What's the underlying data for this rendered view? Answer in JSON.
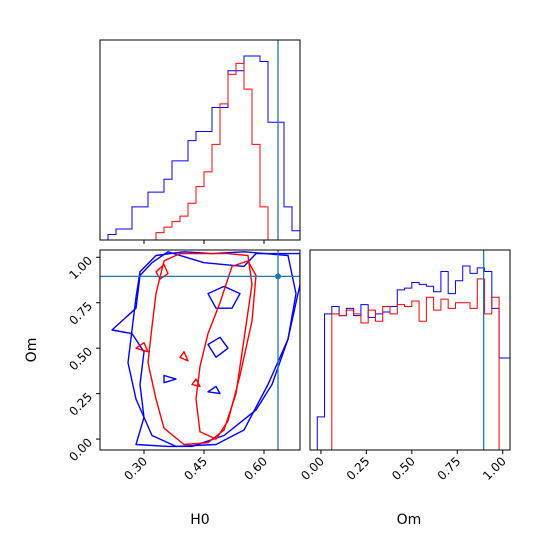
{
  "chart_data": {
    "type": "corner",
    "parameters": [
      "H0",
      "Om"
    ],
    "xlabel": "H0",
    "ylabel": "Om",
    "ranges": {
      "H0": [
        0.19,
        0.69
      ],
      "Om": [
        -0.06,
        1.04
      ]
    },
    "ticks": {
      "H0": {
        "values": [
          0.3,
          0.45,
          0.6
        ],
        "labels": [
          "0.30",
          "0.45",
          "0.60"
        ]
      },
      "Om": {
        "values": [
          0.0,
          0.25,
          0.5,
          0.75,
          1.0
        ],
        "labels": [
          "0.00",
          "0.25",
          "0.50",
          "0.75",
          "1.00"
        ]
      }
    },
    "truth": {
      "H0": 0.635,
      "Om": 0.895
    },
    "colors": {
      "blue": "#0000ff",
      "red": "#ff0000",
      "truth": "#1f77b4"
    },
    "histograms": {
      "H0": {
        "edges": [
          0.19,
          0.21,
          0.23,
          0.25,
          0.27,
          0.29,
          0.31,
          0.33,
          0.35,
          0.37,
          0.39,
          0.41,
          0.43,
          0.45,
          0.47,
          0.49,
          0.51,
          0.53,
          0.55,
          0.57,
          0.59,
          0.61,
          0.63,
          0.65,
          0.67,
          0.69
        ],
        "series": [
          {
            "color": "blue",
            "counts": [
              0.0,
              0.03,
              0.06,
              0.06,
              0.18,
              0.18,
              0.26,
              0.26,
              0.33,
              0.43,
              0.43,
              0.54,
              0.59,
              0.59,
              0.72,
              0.72,
              0.92,
              0.92,
              1.0,
              1.0,
              0.97,
              0.64,
              0.64,
              0.18,
              0.05
            ]
          },
          {
            "color": "red",
            "counts": [
              0.0,
              0.0,
              0.0,
              0.0,
              0.0,
              0.0,
              0.0,
              0.04,
              0.07,
              0.1,
              0.13,
              0.2,
              0.29,
              0.37,
              0.52,
              0.74,
              0.9,
              0.96,
              0.82,
              0.52,
              0.18,
              0.0,
              0.0,
              0.0,
              0.0
            ]
          }
        ]
      },
      "Om": {
        "edges": [
          -0.06,
          -0.02,
          0.02,
          0.06,
          0.1,
          0.14,
          0.18,
          0.22,
          0.26,
          0.3,
          0.34,
          0.38,
          0.42,
          0.46,
          0.5,
          0.54,
          0.58,
          0.62,
          0.66,
          0.7,
          0.74,
          0.78,
          0.82,
          0.86,
          0.9,
          0.94,
          0.98,
          1.02,
          1.04
        ],
        "series": [
          {
            "color": "blue",
            "counts": [
              0.0,
              0.18,
              0.74,
              0.78,
              0.73,
              0.77,
              0.73,
              0.79,
              0.72,
              0.74,
              0.75,
              0.78,
              0.87,
              0.88,
              0.91,
              0.9,
              0.89,
              0.86,
              0.97,
              0.85,
              0.92,
              1.0,
              0.96,
              0.99,
              0.97,
              0.77,
              0.5,
              0.5
            ]
          },
          {
            "color": "red",
            "counts": [
              0.0,
              0.0,
              0.0,
              0.74,
              0.73,
              0.76,
              0.74,
              0.69,
              0.76,
              0.7,
              0.78,
              0.74,
              0.79,
              0.78,
              0.81,
              0.7,
              0.83,
              0.76,
              0.82,
              0.77,
              0.8,
              0.8,
              0.77,
              0.93,
              0.74,
              0.83,
              0.0,
              0.0
            ]
          }
        ]
      }
    },
    "contours": [
      {
        "color": "blue",
        "points": [
          [
            0.28,
            0.78
          ],
          [
            0.27,
            0.6
          ],
          [
            0.26,
            0.42
          ],
          [
            0.28,
            0.22
          ],
          [
            0.32,
            0.02
          ],
          [
            0.38,
            -0.04
          ],
          [
            0.48,
            -0.03
          ],
          [
            0.55,
            0.05
          ],
          [
            0.61,
            0.3
          ],
          [
            0.66,
            0.55
          ],
          [
            0.68,
            0.8
          ],
          [
            0.66,
            1.01
          ],
          [
            0.55,
            1.03
          ],
          [
            0.47,
            1.02
          ],
          [
            0.4,
            1.03
          ],
          [
            0.33,
            1.01
          ],
          [
            0.29,
            0.92
          ],
          [
            0.28,
            0.78
          ]
        ]
      },
      {
        "color": "blue",
        "points": [
          [
            0.22,
            0.6
          ],
          [
            0.27,
            0.58
          ],
          [
            0.3,
            0.48
          ],
          [
            0.29,
            0.3
          ],
          [
            0.3,
            0.12
          ],
          [
            0.28,
            -0.03
          ],
          [
            0.36,
            -0.04
          ],
          [
            0.42,
            -0.04
          ],
          [
            0.5,
            0.02
          ],
          [
            0.58,
            0.16
          ],
          [
            0.62,
            0.3
          ],
          [
            0.66,
            0.55
          ],
          [
            0.69,
            0.85
          ],
          [
            0.69,
            1.02
          ],
          [
            0.65,
            1.02
          ],
          [
            0.58,
            1.02
          ],
          [
            0.55,
            0.95
          ],
          [
            0.45,
            0.97
          ],
          [
            0.36,
            1.03
          ],
          [
            0.32,
            0.97
          ],
          [
            0.29,
            0.9
          ],
          [
            0.28,
            0.72
          ],
          [
            0.22,
            0.6
          ]
        ]
      },
      {
        "color": "blue",
        "points": [
          [
            0.46,
            0.8
          ],
          [
            0.5,
            0.84
          ],
          [
            0.54,
            0.8
          ],
          [
            0.52,
            0.72
          ],
          [
            0.48,
            0.72
          ],
          [
            0.46,
            0.8
          ]
        ]
      },
      {
        "color": "blue",
        "points": [
          [
            0.46,
            0.52
          ],
          [
            0.49,
            0.56
          ],
          [
            0.51,
            0.5
          ],
          [
            0.48,
            0.45
          ],
          [
            0.46,
            0.52
          ]
        ]
      },
      {
        "color": "blue",
        "points": [
          [
            0.35,
            0.35
          ],
          [
            0.38,
            0.33
          ],
          [
            0.35,
            0.31
          ],
          [
            0.35,
            0.35
          ]
        ]
      },
      {
        "color": "blue",
        "points": [
          [
            0.46,
            0.26
          ],
          [
            0.48,
            0.29
          ],
          [
            0.49,
            0.25
          ],
          [
            0.46,
            0.26
          ]
        ]
      },
      {
        "color": "red",
        "points": [
          [
            0.33,
            0.8
          ],
          [
            0.32,
            0.62
          ],
          [
            0.31,
            0.42
          ],
          [
            0.33,
            0.22
          ],
          [
            0.35,
            0.06
          ],
          [
            0.4,
            -0.03
          ],
          [
            0.46,
            -0.02
          ],
          [
            0.5,
            0.05
          ],
          [
            0.53,
            0.25
          ],
          [
            0.55,
            0.55
          ],
          [
            0.57,
            0.85
          ],
          [
            0.56,
            1.01
          ],
          [
            0.51,
            1.02
          ],
          [
            0.45,
            1.02
          ],
          [
            0.39,
            1.02
          ],
          [
            0.35,
            0.98
          ],
          [
            0.33,
            0.8
          ]
        ]
      },
      {
        "color": "red",
        "points": [
          [
            0.44,
            0.4
          ],
          [
            0.43,
            0.22
          ],
          [
            0.44,
            0.04
          ],
          [
            0.48,
            0.0
          ],
          [
            0.51,
            0.1
          ],
          [
            0.54,
            0.35
          ],
          [
            0.57,
            0.65
          ],
          [
            0.58,
            0.9
          ],
          [
            0.56,
            0.98
          ],
          [
            0.52,
            0.95
          ],
          [
            0.49,
            0.75
          ],
          [
            0.46,
            0.58
          ],
          [
            0.44,
            0.4
          ]
        ]
      },
      {
        "color": "red",
        "points": [
          [
            0.33,
            0.92
          ],
          [
            0.35,
            0.96
          ],
          [
            0.36,
            0.91
          ],
          [
            0.34,
            0.88
          ],
          [
            0.33,
            0.92
          ]
        ]
      },
      {
        "color": "red",
        "points": [
          [
            0.28,
            0.5
          ],
          [
            0.3,
            0.53
          ],
          [
            0.31,
            0.48
          ],
          [
            0.28,
            0.5
          ]
        ]
      },
      {
        "color": "red",
        "points": [
          [
            0.39,
            0.45
          ],
          [
            0.4,
            0.48
          ],
          [
            0.41,
            0.43
          ],
          [
            0.39,
            0.45
          ]
        ]
      },
      {
        "color": "red",
        "points": [
          [
            0.42,
            0.3
          ],
          [
            0.43,
            0.33
          ],
          [
            0.44,
            0.29
          ],
          [
            0.42,
            0.3
          ]
        ]
      }
    ]
  }
}
